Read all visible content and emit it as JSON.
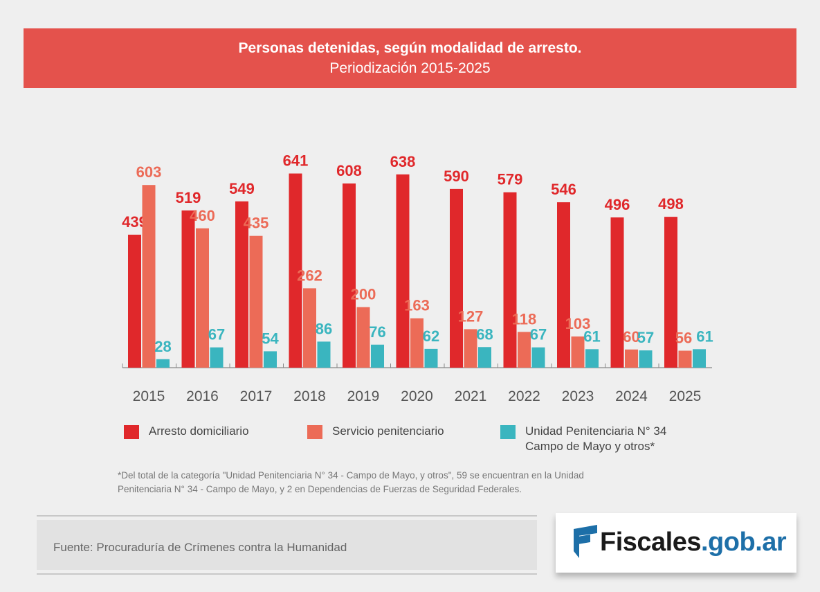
{
  "header": {
    "title": "Personas detenidas, según modalidad de arresto.",
    "subtitle": "Periodización 2015-2025"
  },
  "chart_data": {
    "type": "bar",
    "categories": [
      "2015",
      "2016",
      "2017",
      "2018",
      "2019",
      "2020",
      "2021",
      "2022",
      "2023",
      "2024",
      "2025"
    ],
    "series": [
      {
        "name": "Arresto domiciliario",
        "color": "#e0282b",
        "label_color": "#e0282b",
        "values": [
          439,
          519,
          549,
          641,
          608,
          638,
          590,
          579,
          546,
          496,
          498
        ]
      },
      {
        "name": "Servicio penitenciario",
        "color": "#ec6b57",
        "label_color": "#ec6b57",
        "values": [
          603,
          460,
          435,
          262,
          200,
          163,
          127,
          118,
          103,
          60,
          56
        ]
      },
      {
        "name": "Unidad Penitenciaria N° 34 Campo de Mayo y otros*",
        "color": "#3ab5bf",
        "label_color": "#3ab5bf",
        "values": [
          28,
          67,
          54,
          86,
          76,
          62,
          68,
          67,
          61,
          57,
          61
        ]
      }
    ],
    "ylim": [
      0,
      700
    ],
    "grid": false,
    "data_labels": true
  },
  "legend": {
    "items": [
      {
        "label": "Arresto domiciliario",
        "color": "#e0282b"
      },
      {
        "label": "Servicio penitenciario",
        "color": "#ec6b57"
      },
      {
        "label": "Unidad Penitenciaria N° 34",
        "label2": "Campo de Mayo y otros*",
        "color": "#3ab5bf"
      }
    ]
  },
  "footnote": {
    "line1": "*Del total de la categoría \"Unidad Penitenciaria N° 34 - Campo de Mayo, y otros\", 59 se encuentran en la Unidad",
    "line2": "Penitenciaria N° 34 - Campo de Mayo, y 2 en Dependencias de Fuerzas de Seguridad Federales."
  },
  "source": {
    "text": "Fuente: Procuraduría de Crímenes contra la Humanidad"
  },
  "logo": {
    "name": "Fiscales",
    "domain": ".gob.ar",
    "icon": "fiscales-flag-icon"
  }
}
